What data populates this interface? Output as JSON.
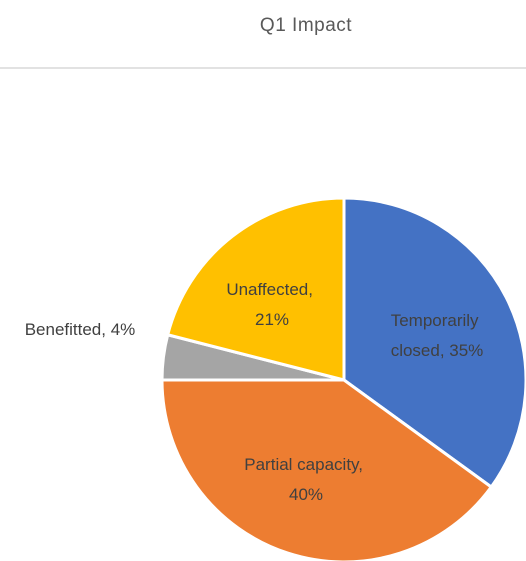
{
  "chart_data": {
    "type": "pie",
    "title": "Q1 Impact",
    "categories": [
      "Temporarily closed",
      "Partial capacity",
      "Benefitted",
      "Unaffected"
    ],
    "values": [
      35,
      40,
      4,
      21
    ],
    "value_labels": [
      "Temporarily closed, 35%",
      "Partial capacity, 40%",
      "Benefitted, 4%",
      "Unaffected, 21%"
    ],
    "colors": [
      "#4472c4",
      "#ed7d31",
      "#a5a5a5",
      "#ffc000"
    ]
  }
}
